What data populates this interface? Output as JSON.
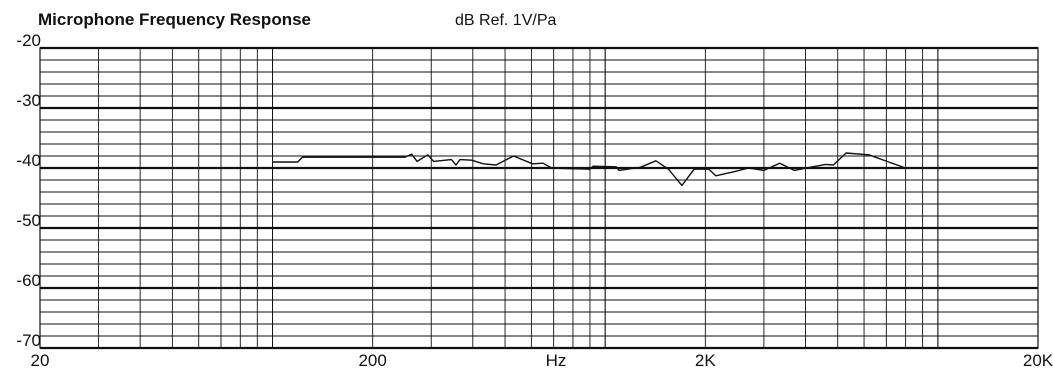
{
  "chart_data": {
    "type": "line",
    "title": "Microphone Frequency Response",
    "subtitle": "dB Ref. 1V/Pa",
    "xlabel": "Hz",
    "ylabel": "",
    "x_scale": "log",
    "xlim": [
      20,
      20000
    ],
    "ylim": [
      -70,
      -20
    ],
    "grid": true,
    "x_tick_labels": [
      {
        "value": 20,
        "label": "20"
      },
      {
        "value": 200,
        "label": "200"
      },
      {
        "value": 2000,
        "label": "2K"
      },
      {
        "value": 20000,
        "label": "20K"
      }
    ],
    "y_tick_labels": [
      {
        "value": -20,
        "label": "-20"
      },
      {
        "value": -30,
        "label": "-30"
      },
      {
        "value": -40,
        "label": "-40"
      },
      {
        "value": -50,
        "label": "-50"
      },
      {
        "value": -60,
        "label": "-60"
      },
      {
        "value": -70,
        "label": "-70"
      }
    ],
    "series": [
      {
        "color": "#111111",
        "points": [
          [
            100,
            -39.0
          ],
          [
            119,
            -39.0
          ],
          [
            123,
            -38.2
          ],
          [
            160,
            -38.2
          ],
          [
            200,
            -38.2
          ],
          [
            250,
            -38.2
          ],
          [
            262,
            -37.7
          ],
          [
            272,
            -38.9
          ],
          [
            293,
            -37.8
          ],
          [
            305,
            -38.9
          ],
          [
            345,
            -38.6
          ],
          [
            356,
            -39.5
          ],
          [
            366,
            -38.6
          ],
          [
            397,
            -38.7
          ],
          [
            430,
            -39.3
          ],
          [
            470,
            -39.5
          ],
          [
            530,
            -38.0
          ],
          [
            605,
            -39.3
          ],
          [
            650,
            -39.2
          ],
          [
            690,
            -40.0
          ],
          [
            760,
            -40.1
          ],
          [
            900,
            -40.2
          ],
          [
            920,
            -39.7
          ],
          [
            1080,
            -39.8
          ],
          [
            1100,
            -40.4
          ],
          [
            1270,
            -39.9
          ],
          [
            1300,
            -39.7
          ],
          [
            1420,
            -38.8
          ],
          [
            1550,
            -40.2
          ],
          [
            1700,
            -42.9
          ],
          [
            1850,
            -40.2
          ],
          [
            2050,
            -40.2
          ],
          [
            2150,
            -41.3
          ],
          [
            2450,
            -40.6
          ],
          [
            2700,
            -40.0
          ],
          [
            3000,
            -40.4
          ],
          [
            3350,
            -39.2
          ],
          [
            3700,
            -40.4
          ],
          [
            4200,
            -39.8
          ],
          [
            4600,
            -39.4
          ],
          [
            4850,
            -39.5
          ],
          [
            5300,
            -37.5
          ],
          [
            6200,
            -37.8
          ],
          [
            7900,
            -39.9
          ]
        ]
      }
    ]
  }
}
